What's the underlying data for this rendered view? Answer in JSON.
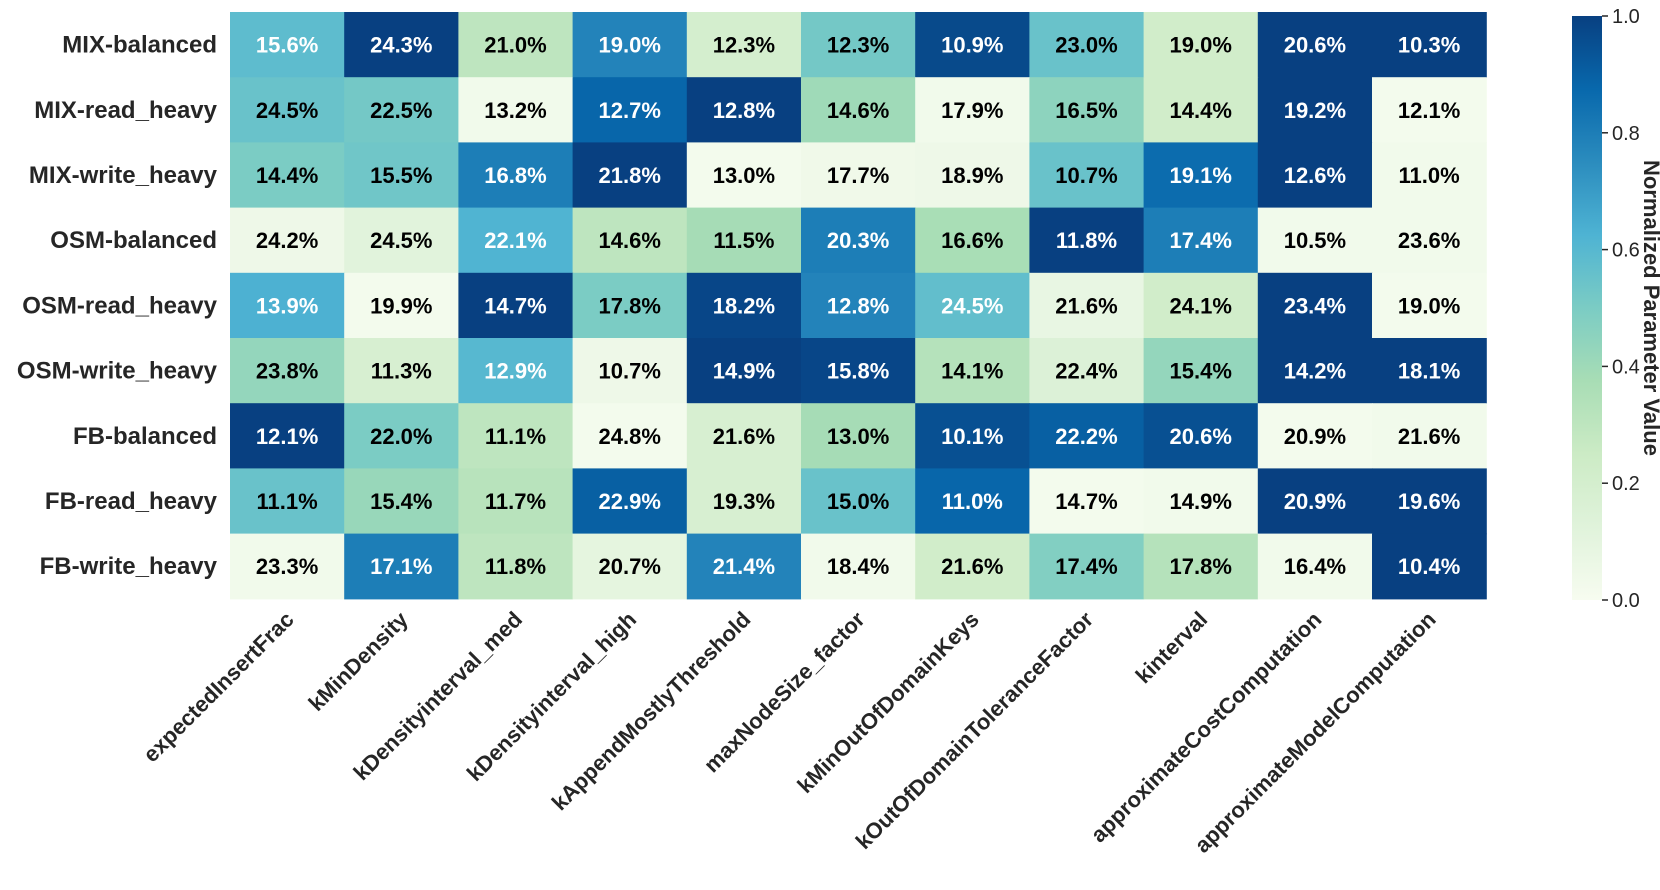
{
  "chart_data": {
    "type": "heatmap",
    "title": "",
    "rows": [
      "MIX-balanced",
      "MIX-read_heavy",
      "MIX-write_heavy",
      "OSM-balanced",
      "OSM-read_heavy",
      "OSM-write_heavy",
      "FB-balanced",
      "FB-read_heavy",
      "FB-write_heavy"
    ],
    "columns": [
      "expectedInsertFrac",
      "kMinDensity",
      "kDensityinterval_med",
      "kDensityinterval_high",
      "kAppendMostlyThreshold",
      "maxNodeSize_factor",
      "kMinOutOfDomainKeys",
      "kOutOfDomainToleranceFactor",
      "kinterval",
      "approximateCostComputation",
      "approximateModelComputation"
    ],
    "labels": [
      [
        "15.6%",
        "24.3%",
        "21.0%",
        "19.0%",
        "12.3%",
        "12.3%",
        "10.9%",
        "23.0%",
        "19.0%",
        "20.6%",
        "10.3%"
      ],
      [
        "24.5%",
        "22.5%",
        "13.2%",
        "12.7%",
        "12.8%",
        "14.6%",
        "17.9%",
        "16.5%",
        "14.4%",
        "19.2%",
        "12.1%"
      ],
      [
        "14.4%",
        "15.5%",
        "16.8%",
        "21.8%",
        "13.0%",
        "17.7%",
        "18.9%",
        "10.7%",
        "19.1%",
        "12.6%",
        "11.0%"
      ],
      [
        "24.2%",
        "24.5%",
        "22.1%",
        "14.6%",
        "11.5%",
        "20.3%",
        "16.6%",
        "11.8%",
        "17.4%",
        "10.5%",
        "23.6%"
      ],
      [
        "13.9%",
        "19.9%",
        "14.7%",
        "17.8%",
        "18.2%",
        "12.8%",
        "24.5%",
        "21.6%",
        "24.1%",
        "23.4%",
        "19.0%"
      ],
      [
        "23.8%",
        "11.3%",
        "12.9%",
        "10.7%",
        "14.9%",
        "15.8%",
        "14.1%",
        "22.4%",
        "15.4%",
        "14.2%",
        "18.1%"
      ],
      [
        "12.1%",
        "22.0%",
        "11.1%",
        "24.8%",
        "21.6%",
        "13.0%",
        "10.1%",
        "22.2%",
        "20.6%",
        "20.9%",
        "21.6%"
      ],
      [
        "11.1%",
        "15.4%",
        "11.7%",
        "22.9%",
        "19.3%",
        "15.0%",
        "11.0%",
        "14.7%",
        "14.9%",
        "20.9%",
        "19.6%"
      ],
      [
        "23.3%",
        "17.1%",
        "11.8%",
        "20.7%",
        "21.4%",
        "18.4%",
        "21.6%",
        "17.4%",
        "17.8%",
        "16.4%",
        "10.4%"
      ]
    ],
    "values": [
      [
        0.58,
        1.0,
        0.3,
        0.78,
        0.2,
        0.52,
        0.97,
        0.55,
        0.22,
        1.0,
        1.0
      ],
      [
        0.55,
        0.52,
        0.03,
        0.88,
        1.0,
        0.4,
        0.03,
        0.45,
        0.22,
        1.0,
        0.02
      ],
      [
        0.5,
        0.53,
        0.8,
        1.0,
        0.02,
        0.04,
        0.05,
        0.55,
        0.86,
        1.0,
        0.03
      ],
      [
        0.05,
        0.12,
        0.62,
        0.3,
        0.38,
        0.8,
        0.37,
        1.0,
        0.8,
        0.03,
        0.03
      ],
      [
        0.63,
        0.02,
        1.0,
        0.5,
        0.98,
        0.78,
        0.57,
        0.08,
        0.22,
        1.0,
        0.02
      ],
      [
        0.43,
        0.18,
        0.6,
        0.05,
        1.0,
        0.98,
        0.33,
        0.15,
        0.43,
        1.0,
        1.0
      ],
      [
        1.0,
        0.5,
        0.3,
        0.02,
        0.18,
        0.38,
        0.95,
        0.9,
        0.95,
        0.02,
        0.03
      ],
      [
        0.55,
        0.42,
        0.32,
        0.9,
        0.18,
        0.55,
        0.88,
        0.02,
        0.03,
        1.0,
        1.0
      ],
      [
        0.03,
        0.8,
        0.3,
        0.1,
        0.78,
        0.03,
        0.22,
        0.48,
        0.33,
        0.03,
        1.0
      ]
    ],
    "colorbar": {
      "label": "Normalized Parameter Value",
      "range": [
        0.0,
        1.0
      ],
      "ticks": [
        "0.0",
        "0.2",
        "0.4",
        "0.6",
        "0.8",
        "1.0"
      ],
      "colormap": "GnBu",
      "stops": [
        "#f7fcf0",
        "#e0f3db",
        "#ccebc5",
        "#a8ddb5",
        "#7bccc4",
        "#4eb3d3",
        "#2b8cbe",
        "#0868ac",
        "#084081"
      ]
    },
    "text_colors": {
      "light": "#ffffff",
      "dark": "#000000"
    }
  }
}
